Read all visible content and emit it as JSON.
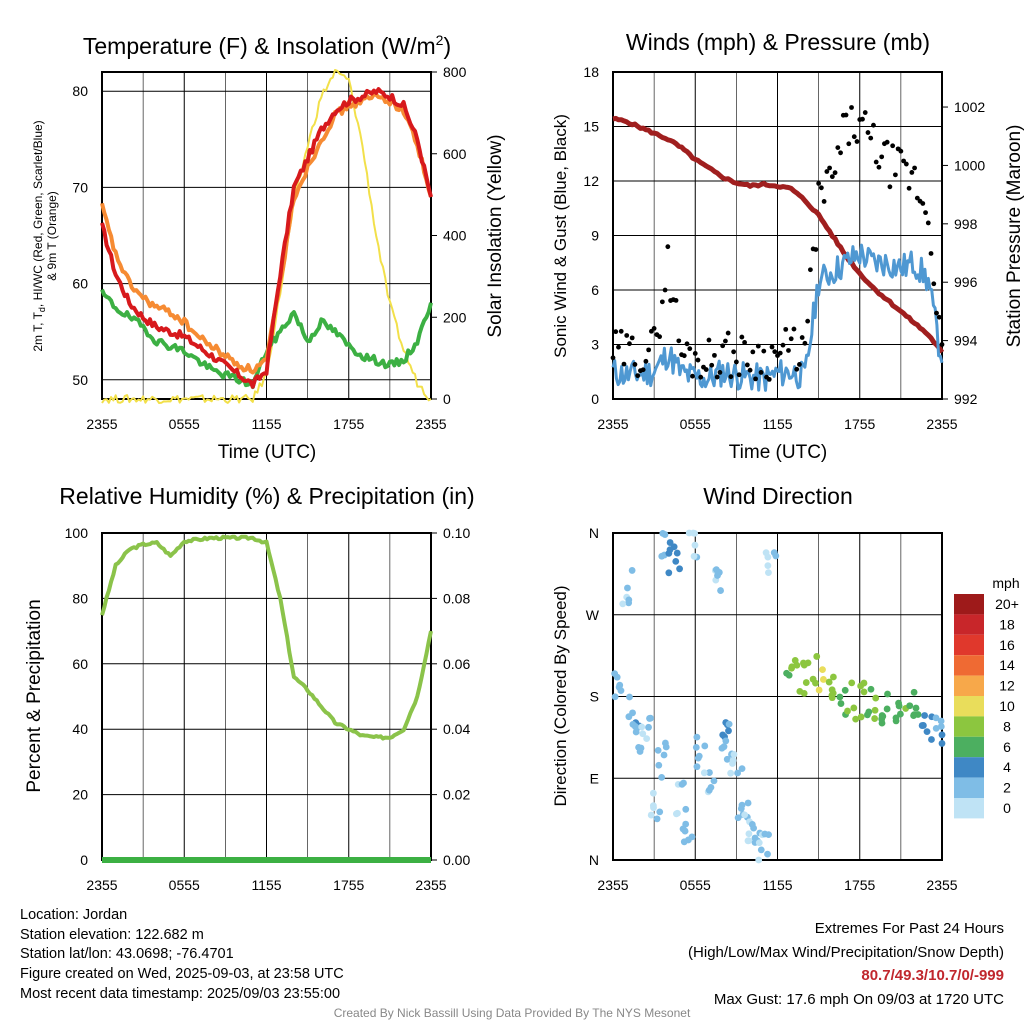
{
  "colors": {
    "red": "#d7191c",
    "orange": "#f68b33",
    "green": "#3cb043",
    "yellow": "#f2e04a",
    "blue": "#4f98d2",
    "black": "#000000",
    "maroon": "#a01f1f",
    "rh": "#8bc34a",
    "precip": "#3cb043",
    "extremes": "#c0272d"
  },
  "chart_data": [
    {
      "type": "line",
      "title": "Temperature (F) & Insolation (W/m",
      "title_sup": "2",
      "title_end": ")",
      "xlabel": "Time (UTC)",
      "ylabel_left_1": "2m T, T",
      "ylabel_left_sub": "d",
      "ylabel_left_2": ", HI/WC (Red, Green, Scarlet/Blue)",
      "ylabel_left_3": "& 9m T (Orange)",
      "ylabel_right": "Solar Insolation (Yellow)",
      "x_ticks": [
        "2355",
        "0555",
        "1155",
        "1755",
        "2355"
      ],
      "ylim": [
        48,
        82
      ],
      "y_ticks": [
        50,
        60,
        70,
        80
      ],
      "y2lim": [
        0,
        800
      ],
      "y2_ticks": [
        0,
        200,
        400,
        600,
        800
      ],
      "x": [
        0,
        1,
        2,
        3,
        4,
        5,
        6,
        7,
        8,
        9,
        10,
        11,
        12,
        13,
        14,
        15,
        16,
        17,
        18,
        19,
        20,
        21,
        22,
        23,
        24
      ],
      "series": [
        {
          "color": "red",
          "values": [
            66,
            61,
            58,
            56.5,
            55.5,
            55,
            54.5,
            53.5,
            52.5,
            51.5,
            50.5,
            49.5,
            51,
            61,
            70,
            73,
            76,
            78,
            79,
            79.5,
            80,
            79.5,
            78.5,
            75,
            69
          ]
        },
        {
          "color": "orange",
          "values": [
            68,
            63,
            60,
            58.5,
            57.5,
            57,
            56,
            54.5,
            53.5,
            52.5,
            51.5,
            51,
            52,
            60,
            69,
            72,
            75,
            77.5,
            78.5,
            79,
            79.5,
            79,
            78,
            74.5,
            69
          ]
        },
        {
          "color": "green",
          "values": [
            59,
            57.5,
            56.5,
            55.5,
            54,
            53.5,
            53,
            52,
            51,
            50.5,
            50,
            49.5,
            53,
            55,
            57,
            54,
            56,
            55,
            53.5,
            52.5,
            52,
            51.5,
            52,
            54,
            58
          ]
        },
        {
          "color": "yellow",
          "axis": "right",
          "values": [
            0,
            0,
            0,
            0,
            0,
            0,
            0,
            0,
            0,
            0,
            0,
            0,
            60,
            260,
            480,
            620,
            740,
            800,
            780,
            620,
            400,
            230,
            120,
            40,
            0
          ]
        }
      ]
    },
    {
      "type": "scatter",
      "title": "Winds (mph) & Pressure (mb)",
      "xlabel": "Time (UTC)",
      "ylabel_left": "Sonic Wind & Gust (Blue, Black)",
      "ylabel_right": "Station Pressure (Maroon)",
      "x_ticks": [
        "2355",
        "0555",
        "1155",
        "1755",
        "2355"
      ],
      "ylim": [
        0,
        18
      ],
      "y_ticks": [
        0,
        3,
        6,
        9,
        12,
        15,
        18
      ],
      "y2lim": [
        992,
        1003.2
      ],
      "y2_ticks": [
        992,
        994,
        996,
        998,
        1000,
        1002
      ],
      "x": [
        0,
        1,
        2,
        3,
        4,
        5,
        6,
        7,
        8,
        9,
        10,
        11,
        12,
        13,
        14,
        15,
        16,
        17,
        18,
        19,
        20,
        21,
        22,
        23,
        24
      ],
      "series": [
        {
          "color": "maroon",
          "axis": "right",
          "values": [
            1001.6,
            1001.5,
            1001.3,
            1001.1,
            1000.9,
            1000.6,
            1000.2,
            999.9,
            999.6,
            999.4,
            999.3,
            999.35,
            999.3,
            999.2,
            998.8,
            998.3,
            997.6,
            996.9,
            996.3,
            995.8,
            995.4,
            995.0,
            994.6,
            994.2,
            993.6
          ]
        },
        {
          "color": "blue",
          "values": [
            1.5,
            1.3,
            1.4,
            1.5,
            2.5,
            1.4,
            1.2,
            1.1,
            1.5,
            1.3,
            1.2,
            1.1,
            1.4,
            1.5,
            1.2,
            6.5,
            7,
            7.5,
            8,
            7.5,
            7.5,
            7.2,
            7.5,
            6.5,
            2
          ]
        },
        {
          "color": "black",
          "values": [
            2.6,
            2.5,
            2.5,
            2.8,
            7.5,
            2.5,
            2.3,
            2.2,
            2.6,
            2.3,
            2.4,
            2.2,
            2.5,
            2.8,
            2.6,
            11,
            12,
            15,
            15,
            14,
            13,
            12.5,
            12,
            10,
            3
          ]
        }
      ]
    },
    {
      "type": "line",
      "title": "Relative Humidity (%) & Precipitation (in)",
      "ylabel_left": "Percent & Precipitation",
      "x_ticks": [
        "2355",
        "0555",
        "1155",
        "1755",
        "2355"
      ],
      "ylim": [
        0,
        100
      ],
      "y_ticks": [
        0,
        20,
        40,
        60,
        80,
        100
      ],
      "y2lim": [
        0,
        0.1
      ],
      "y2_ticks": [
        "0.00",
        "0.02",
        "0.04",
        "0.06",
        "0.08",
        "0.10"
      ],
      "x": [
        0,
        1,
        2,
        3,
        4,
        5,
        6,
        7,
        8,
        9,
        10,
        11,
        12,
        13,
        14,
        15,
        16,
        17,
        18,
        19,
        20,
        21,
        22,
        23,
        24
      ],
      "series": [
        {
          "color": "rh",
          "values": [
            75,
            90,
            95,
            96.5,
            97,
            93,
            97.5,
            98,
            98.5,
            98.5,
            98.5,
            98.5,
            97,
            80,
            56,
            52,
            47,
            42,
            40,
            38,
            37.5,
            37.5,
            40,
            50,
            70
          ]
        },
        {
          "color": "precip",
          "axis": "right",
          "values": [
            0,
            0,
            0,
            0,
            0,
            0,
            0,
            0,
            0,
            0,
            0,
            0,
            0,
            0,
            0,
            0,
            0,
            0,
            0,
            0,
            0,
            0,
            0,
            0,
            0
          ]
        }
      ]
    },
    {
      "type": "scatter",
      "title": "Wind Direction",
      "ylabel_left": "Direction (Colored By Speed)",
      "x_ticks": [
        "2355",
        "0555",
        "1155",
        "1755",
        "2355"
      ],
      "y_ticks": [
        "N",
        "E",
        "S",
        "W",
        "N"
      ],
      "ylim": [
        0,
        360
      ],
      "legend_title": "mph",
      "legend_labels": [
        "20+",
        "18",
        "16",
        "14",
        "12",
        "10",
        "8",
        "6",
        "4",
        "2",
        "0"
      ],
      "legend_colors": [
        "#9e1a1a",
        "#c8262a",
        "#e0382c",
        "#ef6a33",
        "#f7a84a",
        "#e9dd5b",
        "#8cc63f",
        "#4caf60",
        "#3f88c5",
        "#7fbde6",
        "#bfe3f5"
      ],
      "points": [
        {
          "x": 0.5,
          "dir": 190,
          "spd": 2
        },
        {
          "x": 1,
          "dir": 300,
          "spd": 1
        },
        {
          "x": 1.5,
          "dir": 160,
          "spd": 3
        },
        {
          "x": 2,
          "dir": 130,
          "spd": 2
        },
        {
          "x": 2.5,
          "dir": 150,
          "spd": 1
        },
        {
          "x": 3,
          "dir": 60,
          "spd": 1
        },
        {
          "x": 3.5,
          "dir": 110,
          "spd": 2
        },
        {
          "x": 4,
          "dir": 340,
          "spd": 3
        },
        {
          "x": 4.5,
          "dir": 330,
          "spd": 4
        },
        {
          "x": 5,
          "dir": 70,
          "spd": 1
        },
        {
          "x": 5.5,
          "dir": 40,
          "spd": 2
        },
        {
          "x": 6,
          "dir": 350,
          "spd": 1
        },
        {
          "x": 6.5,
          "dir": 120,
          "spd": 2
        },
        {
          "x": 7,
          "dir": 80,
          "spd": 1
        },
        {
          "x": 7.5,
          "dir": 300,
          "spd": 1
        },
        {
          "x": 8,
          "dir": 140,
          "spd": 3
        },
        {
          "x": 8.5,
          "dir": 130,
          "spd": 2
        },
        {
          "x": 9,
          "dir": 100,
          "spd": 1
        },
        {
          "x": 9.5,
          "dir": 60,
          "spd": 2
        },
        {
          "x": 10,
          "dir": 40,
          "spd": 1
        },
        {
          "x": 10.5,
          "dir": 30,
          "spd": 2
        },
        {
          "x": 11,
          "dir": 10,
          "spd": 1
        },
        {
          "x": 11.5,
          "dir": 330,
          "spd": 1
        },
        {
          "x": 13,
          "dir": 210,
          "spd": 7
        },
        {
          "x": 14,
          "dir": 200,
          "spd": 8
        },
        {
          "x": 15,
          "dir": 205,
          "spd": 9
        },
        {
          "x": 16,
          "dir": 195,
          "spd": 8
        },
        {
          "x": 17,
          "dir": 180,
          "spd": 7
        },
        {
          "x": 18,
          "dir": 175,
          "spd": 8
        },
        {
          "x": 19,
          "dir": 170,
          "spd": 7
        },
        {
          "x": 20,
          "dir": 165,
          "spd": 6
        },
        {
          "x": 21,
          "dir": 160,
          "spd": 7
        },
        {
          "x": 22,
          "dir": 170,
          "spd": 6
        },
        {
          "x": 23,
          "dir": 150,
          "spd": 4
        },
        {
          "x": 24,
          "dir": 145,
          "spd": 3
        }
      ]
    }
  ],
  "footer": {
    "location": "Location: Jordan",
    "elevation": "Station elevation: 122.682 m",
    "latlon": "Station lat/lon: 43.0698; -76.4701",
    "created": "Figure created on Wed, 2025-09-03, at 23:58 UTC",
    "recent": "Most recent data timestamp: 2025/09/03 23:55:00",
    "extremes_title": "Extremes For Past 24 Hours",
    "extremes_desc": "(High/Low/Max Wind/Precipitation/Snow Depth)",
    "extremes_values": "80.7/49.3/10.7/0/-999",
    "max_gust": "Max Gust: 17.6 mph On 09/03 at 1720 UTC",
    "credit": "Created By Nick Bassill Using Data Provided By The NYS Mesonet"
  }
}
